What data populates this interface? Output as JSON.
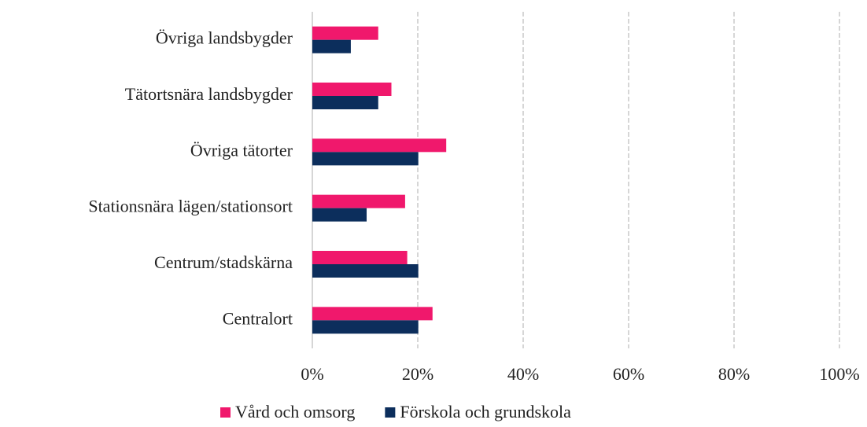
{
  "chart_data": {
    "type": "hbar",
    "categories": [
      "Övriga landsbygder",
      "Tätortsnära landsbygder",
      "Övriga tätorter",
      "Stationsnära lägen/stationsort",
      "Centrum/stadskärna",
      "Centralort"
    ],
    "series": [
      {
        "name": "Vård och omsorg",
        "color": "#f0186c",
        "values": [
          12.5,
          15,
          25.4,
          17.6,
          18,
          22.8
        ]
      },
      {
        "name": "Förskola och grundskola",
        "color": "#0c2e5c",
        "values": [
          7.3,
          12.5,
          20.1,
          10.3,
          20.1,
          20.1
        ]
      }
    ],
    "xlim": [
      0,
      100
    ],
    "xticks": [
      {
        "value": 0,
        "label": "0%"
      },
      {
        "value": 20,
        "label": "20%"
      },
      {
        "value": 40,
        "label": "40%"
      },
      {
        "value": 60,
        "label": "60%"
      },
      {
        "value": 80,
        "label": "80%"
      },
      {
        "value": 100,
        "label": "100%"
      }
    ],
    "grid": true,
    "legend": "bottom"
  }
}
